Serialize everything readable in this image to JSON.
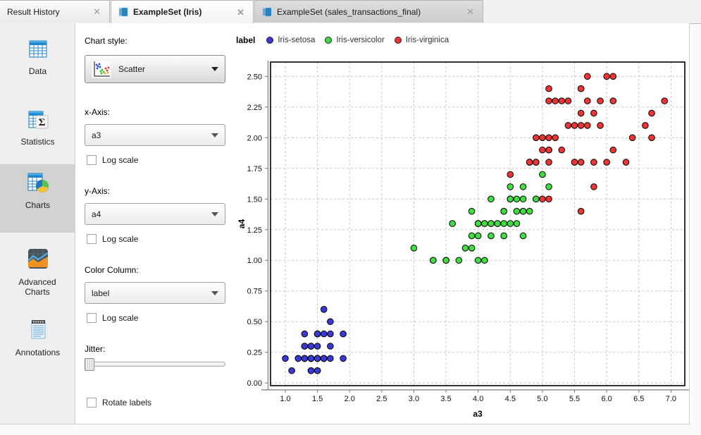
{
  "tabs": [
    {
      "title": "Result History"
    },
    {
      "title": "ExampleSet (Iris)"
    },
    {
      "title": "ExampleSet (sales_transactions_final)"
    }
  ],
  "sidebar": {
    "items": [
      {
        "label": "Data",
        "selected": false
      },
      {
        "label": "Statistics",
        "selected": false
      },
      {
        "label": "Charts",
        "selected": true
      },
      {
        "label": "Advanced Charts",
        "selected": false
      },
      {
        "label": "Annotations",
        "selected": false
      }
    ]
  },
  "controls": {
    "chart_style": {
      "label": "Chart style:",
      "value": "Scatter"
    },
    "x_axis": {
      "label": "x-Axis:",
      "value": "a3",
      "log_label": "Log scale",
      "log_checked": false
    },
    "y_axis": {
      "label": "y-Axis:",
      "value": "a4",
      "log_label": "Log scale",
      "log_checked": false
    },
    "color_column": {
      "label": "Color Column:",
      "value": "label",
      "log_label": "Log scale",
      "log_checked": false
    },
    "jitter": {
      "label": "Jitter:",
      "value": 0
    },
    "rotate_labels": {
      "label": "Rotate labels",
      "checked": false
    }
  },
  "chart_data": {
    "type": "scatter",
    "legend_title": "label",
    "legend_position": "top",
    "xlabel": "a3",
    "ylabel": "a4",
    "x_range": [
      0.77,
      7.215
    ],
    "y_range": [
      -0.022,
      2.617
    ],
    "x_ticks": [
      1.0,
      1.5,
      2.0,
      2.5,
      3.0,
      3.5,
      4.0,
      4.5,
      5.0,
      5.5,
      6.0,
      6.5,
      7.0
    ],
    "y_ticks": [
      0.0,
      0.25,
      0.5,
      0.75,
      1.0,
      1.25,
      1.5,
      1.75,
      2.0,
      2.25,
      2.5
    ],
    "x_tick_decimals": 1,
    "y_tick_decimals": 2,
    "grid": true,
    "grid_color": "#c8c8c8",
    "point_stroke": "#000000",
    "series": [
      {
        "name": "Iris-setosa",
        "color": "#3939d8",
        "points": [
          [
            1.4,
            0.2
          ],
          [
            1.4,
            0.2
          ],
          [
            1.3,
            0.2
          ],
          [
            1.5,
            0.2
          ],
          [
            1.4,
            0.2
          ],
          [
            1.7,
            0.4
          ],
          [
            1.4,
            0.3
          ],
          [
            1.5,
            0.2
          ],
          [
            1.4,
            0.2
          ],
          [
            1.5,
            0.1
          ],
          [
            1.5,
            0.2
          ],
          [
            1.6,
            0.2
          ],
          [
            1.4,
            0.1
          ],
          [
            1.1,
            0.1
          ],
          [
            1.2,
            0.2
          ],
          [
            1.5,
            0.4
          ],
          [
            1.3,
            0.4
          ],
          [
            1.4,
            0.3
          ],
          [
            1.7,
            0.3
          ],
          [
            1.5,
            0.3
          ],
          [
            1.7,
            0.2
          ],
          [
            1.5,
            0.4
          ],
          [
            1.0,
            0.2
          ],
          [
            1.7,
            0.5
          ],
          [
            1.9,
            0.2
          ],
          [
            1.6,
            0.2
          ],
          [
            1.6,
            0.4
          ],
          [
            1.5,
            0.2
          ],
          [
            1.4,
            0.2
          ],
          [
            1.6,
            0.2
          ],
          [
            1.6,
            0.2
          ],
          [
            1.5,
            0.4
          ],
          [
            1.5,
            0.1
          ],
          [
            1.4,
            0.2
          ],
          [
            1.5,
            0.2
          ],
          [
            1.2,
            0.2
          ],
          [
            1.3,
            0.2
          ],
          [
            1.4,
            0.1
          ],
          [
            1.3,
            0.2
          ],
          [
            1.5,
            0.2
          ],
          [
            1.3,
            0.3
          ],
          [
            1.3,
            0.3
          ],
          [
            1.3,
            0.2
          ],
          [
            1.6,
            0.6
          ],
          [
            1.9,
            0.4
          ],
          [
            1.4,
            0.3
          ],
          [
            1.6,
            0.2
          ],
          [
            1.4,
            0.2
          ],
          [
            1.5,
            0.2
          ],
          [
            1.4,
            0.2
          ]
        ]
      },
      {
        "name": "Iris-versicolor",
        "color": "#3fdd3f",
        "points": [
          [
            4.7,
            1.4
          ],
          [
            4.5,
            1.5
          ],
          [
            4.9,
            1.5
          ],
          [
            4.0,
            1.3
          ],
          [
            4.6,
            1.5
          ],
          [
            4.5,
            1.3
          ],
          [
            4.7,
            1.6
          ],
          [
            3.3,
            1.0
          ],
          [
            4.6,
            1.3
          ],
          [
            3.9,
            1.4
          ],
          [
            3.5,
            1.0
          ],
          [
            4.2,
            1.5
          ],
          [
            4.0,
            1.0
          ],
          [
            4.7,
            1.4
          ],
          [
            3.6,
            1.3
          ],
          [
            4.4,
            1.4
          ],
          [
            4.5,
            1.5
          ],
          [
            4.1,
            1.0
          ],
          [
            4.5,
            1.5
          ],
          [
            3.9,
            1.1
          ],
          [
            4.8,
            1.8
          ],
          [
            4.0,
            1.3
          ],
          [
            4.9,
            1.5
          ],
          [
            4.7,
            1.2
          ],
          [
            4.3,
            1.3
          ],
          [
            4.4,
            1.4
          ],
          [
            4.8,
            1.4
          ],
          [
            5.0,
            1.7
          ],
          [
            4.5,
            1.5
          ],
          [
            3.5,
            1.0
          ],
          [
            3.8,
            1.1
          ],
          [
            3.7,
            1.0
          ],
          [
            3.9,
            1.2
          ],
          [
            5.1,
            1.6
          ],
          [
            4.5,
            1.5
          ],
          [
            4.5,
            1.6
          ],
          [
            4.7,
            1.5
          ],
          [
            4.4,
            1.3
          ],
          [
            4.1,
            1.3
          ],
          [
            4.0,
            1.3
          ],
          [
            4.4,
            1.2
          ],
          [
            4.6,
            1.4
          ],
          [
            4.0,
            1.2
          ],
          [
            3.3,
            1.0
          ],
          [
            4.2,
            1.3
          ],
          [
            4.2,
            1.2
          ],
          [
            4.2,
            1.3
          ],
          [
            4.3,
            1.3
          ],
          [
            3.0,
            1.1
          ],
          [
            4.1,
            1.3
          ]
        ]
      },
      {
        "name": "Iris-virginica",
        "color": "#ee3434",
        "points": [
          [
            6.0,
            2.5
          ],
          [
            5.1,
            1.9
          ],
          [
            5.9,
            2.1
          ],
          [
            5.6,
            1.8
          ],
          [
            5.8,
            2.2
          ],
          [
            6.6,
            2.1
          ],
          [
            4.5,
            1.7
          ],
          [
            6.3,
            1.8
          ],
          [
            5.8,
            1.8
          ],
          [
            6.1,
            2.5
          ],
          [
            5.1,
            2.0
          ],
          [
            5.3,
            1.9
          ],
          [
            5.5,
            2.1
          ],
          [
            5.0,
            2.0
          ],
          [
            5.1,
            2.4
          ],
          [
            5.3,
            2.3
          ],
          [
            5.5,
            1.8
          ],
          [
            6.7,
            2.2
          ],
          [
            6.9,
            2.3
          ],
          [
            5.0,
            1.5
          ],
          [
            5.7,
            2.3
          ],
          [
            4.9,
            2.0
          ],
          [
            6.7,
            2.0
          ],
          [
            4.9,
            1.8
          ],
          [
            5.7,
            2.1
          ],
          [
            6.0,
            1.8
          ],
          [
            4.8,
            1.8
          ],
          [
            4.9,
            1.8
          ],
          [
            5.6,
            2.1
          ],
          [
            5.8,
            1.6
          ],
          [
            6.1,
            1.9
          ],
          [
            6.4,
            2.0
          ],
          [
            5.6,
            2.2
          ],
          [
            5.1,
            1.5
          ],
          [
            5.6,
            1.4
          ],
          [
            6.1,
            2.3
          ],
          [
            5.6,
            2.4
          ],
          [
            5.5,
            1.8
          ],
          [
            4.8,
            1.8
          ],
          [
            5.4,
            2.1
          ],
          [
            5.6,
            2.4
          ],
          [
            5.1,
            2.3
          ],
          [
            5.1,
            1.9
          ],
          [
            5.9,
            2.3
          ],
          [
            5.7,
            2.5
          ],
          [
            5.2,
            2.3
          ],
          [
            5.0,
            1.9
          ],
          [
            5.2,
            2.0
          ],
          [
            5.4,
            2.3
          ],
          [
            5.1,
            1.8
          ]
        ]
      }
    ]
  }
}
